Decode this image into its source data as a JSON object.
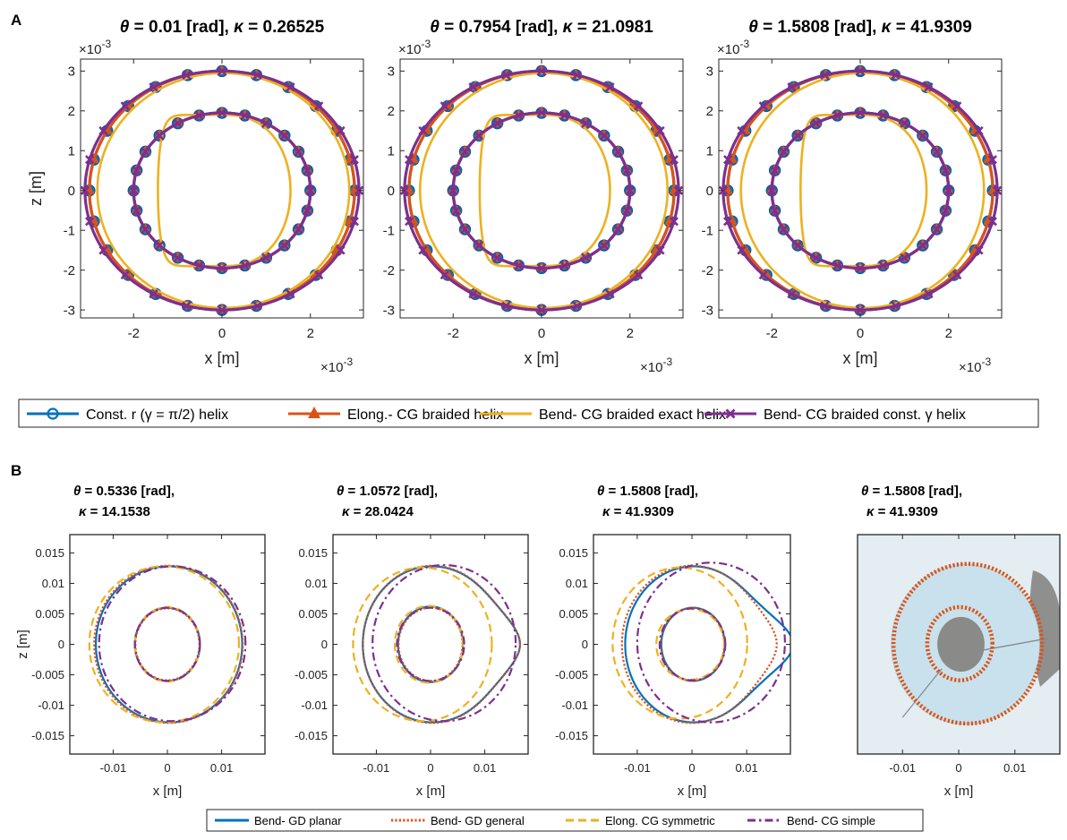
{
  "colors": {
    "blue": "#0072BD",
    "orange": "#D95319",
    "yellow": "#EDB120",
    "purple": "#7E2F8E",
    "photo_bg": "#e3edf2",
    "photo_disk": "#c9e1ec",
    "photo_hole": "#8a8a88"
  },
  "panel_labels": {
    "a": "A",
    "b": "B"
  },
  "legend_a": [
    {
      "label": "Const. r (γ = π/2) helix",
      "color": "#0072BD",
      "style": "solid",
      "marker": "circle"
    },
    {
      "label": "Elong.- CG braided helix",
      "color": "#D95319",
      "style": "solid",
      "marker": "triangle"
    },
    {
      "label": "Bend- CG braided exact helix",
      "color": "#EDB120",
      "style": "solid",
      "marker": "none"
    },
    {
      "label": "Bend- CG braided const. γ helix",
      "color": "#7E2F8E",
      "style": "solid",
      "marker": "x"
    }
  ],
  "legend_b": [
    {
      "label": "Bend- GD planar",
      "color": "#0072BD",
      "style": "solid"
    },
    {
      "label": "Bend- GD general",
      "color": "#D95319",
      "style": "dotted"
    },
    {
      "label": "Elong. CG symmetric",
      "color": "#EDB120",
      "style": "dashed"
    },
    {
      "label": "Bend- CG simple",
      "color": "#7E2F8E",
      "style": "dashdot"
    }
  ],
  "chart_data": [
    {
      "type": "line",
      "panel": "A",
      "title_sym1": "θ",
      "title_mid": " = 0.01 [rad], ",
      "title_sym2": "κ",
      "title_end": " = 0.26525",
      "xlabel": "x [m]",
      "ylabel": "z [m]",
      "x_exponent": "×10",
      "x_exponent_power": "-3",
      "y_exponent": "×10",
      "y_exponent_power": "-3",
      "xlim": [
        -3.2,
        3.2
      ],
      "ylim": [
        -3.2,
        3.3
      ],
      "xticks": [
        -2,
        0,
        2
      ],
      "xtick_labels": [
        "-2",
        "0",
        "2"
      ],
      "yticks": [
        -3,
        -2,
        -1,
        0,
        1,
        2,
        3
      ],
      "ytick_labels": [
        "-3",
        "-2",
        "-1",
        "0",
        "1",
        "2",
        "3"
      ],
      "series": [
        {
          "name": "Const. r inner",
          "curve": "ellipse",
          "a": 2.0,
          "b": 1.95,
          "cx": 0,
          "cz": 0,
          "color": "#0072BD",
          "marker": "circle"
        },
        {
          "name": "Const. r outer",
          "curve": "ellipse",
          "a": 3.0,
          "b": 3.0,
          "cx": 0,
          "cz": 0,
          "color": "#0072BD",
          "marker": "circle"
        },
        {
          "name": "Elong. inner",
          "curve": "ellipse",
          "a": 2.0,
          "b": 1.95,
          "cx": 0,
          "cz": 0,
          "color": "#D95319",
          "marker": "triangle"
        },
        {
          "name": "Elong. outer",
          "curve": "ellipse",
          "a": 3.0,
          "b": 3.0,
          "cx": 0,
          "cz": 0,
          "color": "#D95319",
          "marker": "triangle"
        },
        {
          "name": "Bend exact inner",
          "curve": "dshape",
          "xl": -1.45,
          "xr": 1.55,
          "hz": 1.9,
          "color": "#EDB120"
        },
        {
          "name": "Bend exact outer",
          "curve": "ellipse",
          "a": 2.85,
          "b": 2.95,
          "cx": 0.03,
          "cz": 0,
          "color": "#EDB120"
        },
        {
          "name": "Bend const inner",
          "curve": "ellipse",
          "a": 2.0,
          "b": 1.95,
          "cx": 0,
          "cz": 0,
          "color": "#7E2F8E",
          "marker": "x"
        },
        {
          "name": "Bend const outer",
          "curve": "ellipse",
          "a": 3.1,
          "b": 3.0,
          "cx": 0,
          "cz": 0,
          "color": "#7E2F8E",
          "marker": "x"
        }
      ]
    },
    {
      "type": "line",
      "panel": "A",
      "title_sym1": "θ",
      "title_mid": " = 0.7954 [rad], ",
      "title_sym2": "κ",
      "title_end": " = 21.0981",
      "xlabel": "x [m]",
      "ylabel": "",
      "x_exponent": "×10",
      "x_exponent_power": "-3",
      "y_exponent": "×10",
      "y_exponent_power": "-3",
      "xlim": [
        -3.2,
        3.2
      ],
      "ylim": [
        -3.2,
        3.3
      ],
      "xticks": [
        -2,
        0,
        2
      ],
      "xtick_labels": [
        "-2",
        "0",
        "2"
      ],
      "yticks": [
        -3,
        -2,
        -1,
        0,
        1,
        2,
        3
      ],
      "ytick_labels": [
        "-3",
        "-2",
        "-1",
        "0",
        "1",
        "2",
        "3"
      ],
      "series": [
        {
          "name": "Const. r inner",
          "curve": "ellipse",
          "a": 2.0,
          "b": 1.95,
          "cx": 0,
          "cz": 0,
          "color": "#0072BD",
          "marker": "circle"
        },
        {
          "name": "Const. r outer",
          "curve": "ellipse",
          "a": 3.0,
          "b": 3.0,
          "cx": 0,
          "cz": 0,
          "color": "#0072BD",
          "marker": "circle"
        },
        {
          "name": "Elong. inner",
          "curve": "ellipse",
          "a": 2.0,
          "b": 1.95,
          "cx": 0,
          "cz": 0,
          "color": "#D95319",
          "marker": "triangle"
        },
        {
          "name": "Elong. outer",
          "curve": "ellipse",
          "a": 3.0,
          "b": 3.0,
          "cx": 0,
          "cz": 0,
          "color": "#D95319",
          "marker": "triangle"
        },
        {
          "name": "Bend exact inner",
          "curve": "dshape",
          "xl": -1.4,
          "xr": 1.55,
          "hz": 1.9,
          "color": "#EDB120"
        },
        {
          "name": "Bend exact outer",
          "curve": "ellipse",
          "a": 2.8,
          "b": 2.95,
          "cx": 0.05,
          "cz": 0,
          "color": "#EDB120"
        },
        {
          "name": "Bend const inner",
          "curve": "ellipse",
          "a": 2.0,
          "b": 1.95,
          "cx": 0,
          "cz": 0,
          "color": "#7E2F8E",
          "marker": "x"
        },
        {
          "name": "Bend const outer",
          "curve": "ellipse",
          "a": 3.1,
          "b": 3.0,
          "cx": 0,
          "cz": 0,
          "color": "#7E2F8E",
          "marker": "x"
        }
      ]
    },
    {
      "type": "line",
      "panel": "A",
      "title_sym1": "θ",
      "title_mid": " = 1.5808 [rad], ",
      "title_sym2": "κ",
      "title_end": " = 41.9309",
      "xlabel": "x [m]",
      "ylabel": "",
      "x_exponent": "×10",
      "x_exponent_power": "-3",
      "y_exponent": "×10",
      "y_exponent_power": "-3",
      "xlim": [
        -3.2,
        3.2
      ],
      "ylim": [
        -3.2,
        3.3
      ],
      "xticks": [
        -2,
        0,
        2
      ],
      "xtick_labels": [
        "-2",
        "0",
        "2"
      ],
      "yticks": [
        -3,
        -2,
        -1,
        0,
        1,
        2,
        3
      ],
      "ytick_labels": [
        "-3",
        "-2",
        "-1",
        "0",
        "1",
        "2",
        "3"
      ],
      "series": [
        {
          "name": "Const. r inner",
          "curve": "ellipse",
          "a": 2.0,
          "b": 1.95,
          "cx": 0,
          "cz": 0,
          "color": "#0072BD",
          "marker": "circle"
        },
        {
          "name": "Const. r outer",
          "curve": "ellipse",
          "a": 3.0,
          "b": 3.0,
          "cx": 0,
          "cz": 0,
          "color": "#0072BD",
          "marker": "circle"
        },
        {
          "name": "Elong. inner",
          "curve": "ellipse",
          "a": 2.0,
          "b": 1.95,
          "cx": 0,
          "cz": 0,
          "color": "#D95319",
          "marker": "triangle"
        },
        {
          "name": "Elong. outer",
          "curve": "ellipse",
          "a": 3.0,
          "b": 3.0,
          "cx": 0,
          "cz": 0,
          "color": "#D95319",
          "marker": "triangle"
        },
        {
          "name": "Bend exact inner",
          "curve": "dshape",
          "xl": -1.35,
          "xr": 1.5,
          "hz": 1.9,
          "color": "#EDB120"
        },
        {
          "name": "Bend exact outer",
          "curve": "ellipse",
          "a": 2.75,
          "b": 2.95,
          "cx": 0.05,
          "cz": 0,
          "color": "#EDB120"
        },
        {
          "name": "Bend const inner",
          "curve": "ellipse",
          "a": 2.0,
          "b": 1.95,
          "cx": 0,
          "cz": 0,
          "color": "#7E2F8E",
          "marker": "x"
        },
        {
          "name": "Bend const outer",
          "curve": "ellipse",
          "a": 3.1,
          "b": 3.0,
          "cx": 0,
          "cz": 0,
          "color": "#7E2F8E",
          "marker": "x"
        }
      ]
    },
    {
      "type": "line",
      "panel": "B",
      "title_sym1": "θ",
      "title_mid": " = 0.5336 [rad],",
      "title_sym2": "κ",
      "title_end": " = 14.1538",
      "xlabel": "x [m]",
      "ylabel": "z [m]",
      "xlim": [
        -0.018,
        0.018
      ],
      "ylim": [
        -0.018,
        0.018
      ],
      "xticks": [
        -0.01,
        0,
        0.01
      ],
      "xtick_labels": [
        "-0.01",
        "0",
        "0.01"
      ],
      "yticks": [
        -0.015,
        -0.01,
        -0.005,
        0,
        0.005,
        0.01,
        0.015
      ],
      "ytick_labels": [
        "-0.015",
        "-0.01",
        "-0.005",
        "0",
        "0.005",
        "0.01",
        "0.015"
      ],
      "series": [
        {
          "name": "GD planar inner",
          "curve": "ellipse",
          "a": 0.006,
          "b": 0.006,
          "cx": 0,
          "cz": 0,
          "color": "#0072BD",
          "style": "solid"
        },
        {
          "name": "GD planar outer",
          "curve": "ellipse",
          "a": 0.0135,
          "b": 0.0128,
          "cx": 0.0003,
          "cz": 0,
          "color": "#0072BD",
          "style": "solid"
        },
        {
          "name": "GD general inner",
          "curve": "ellipse",
          "a": 0.0059,
          "b": 0.0059,
          "cx": 0,
          "cz": 0,
          "color": "#D95319",
          "style": "dotted"
        },
        {
          "name": "GD general outer",
          "curve": "ellipse",
          "a": 0.0137,
          "b": 0.0129,
          "cx": 0.0002,
          "cz": 0,
          "color": "#D95319",
          "style": "dotted"
        },
        {
          "name": "Elong inner",
          "curve": "ellipse",
          "a": 0.006,
          "b": 0.0061,
          "cx": 0,
          "cz": 0,
          "color": "#EDB120",
          "style": "dashed"
        },
        {
          "name": "Elong outer",
          "curve": "ellipse",
          "a": 0.0138,
          "b": 0.0128,
          "cx": -0.0006,
          "cz": 0,
          "color": "#EDB120",
          "style": "dashed"
        },
        {
          "name": "CG simple inner",
          "curve": "ellipse",
          "a": 0.006,
          "b": 0.006,
          "cx": 0,
          "cz": 0,
          "color": "#7E2F8E",
          "style": "dashdot"
        },
        {
          "name": "CG simple outer",
          "curve": "ellipse",
          "a": 0.0135,
          "b": 0.0127,
          "cx": 0.0009,
          "cz": 0.0001,
          "color": "#7E2F8E",
          "style": "dashdot"
        }
      ]
    },
    {
      "type": "line",
      "panel": "B",
      "title_sym1": "θ",
      "title_mid": " = 1.0572 [rad],",
      "title_sym2": "κ",
      "title_end": " = 28.0424",
      "xlabel": "x [m]",
      "ylabel": "",
      "xlim": [
        -0.018,
        0.018
      ],
      "ylim": [
        -0.018,
        0.018
      ],
      "xticks": [
        -0.01,
        0,
        0.01
      ],
      "xtick_labels": [
        "-0.01",
        "0",
        "0.01"
      ],
      "yticks": [
        -0.015,
        -0.01,
        -0.005,
        0,
        0.005,
        0.01,
        0.015
      ],
      "ytick_labels": [
        "-0.015",
        "-0.01",
        "-0.005",
        "0",
        "0.005",
        "0.01",
        "0.015"
      ],
      "series": [
        {
          "name": "GD planar inner",
          "curve": "ellipse",
          "a": 0.006,
          "b": 0.0062,
          "cx": 0,
          "cz": 0,
          "color": "#0072BD",
          "style": "solid"
        },
        {
          "name": "GD planar outer",
          "curve": "bulge",
          "a": 0.0128,
          "b": 0.0128,
          "cx": 0.0003,
          "cz": 0,
          "tip": 0.0165,
          "color": "#0072BD",
          "style": "solid"
        },
        {
          "name": "GD general inner",
          "curve": "ellipse",
          "a": 0.0059,
          "b": 0.006,
          "cx": 0,
          "cz": 0,
          "color": "#D95319",
          "style": "dotted"
        },
        {
          "name": "GD general outer",
          "curve": "bulge",
          "a": 0.0128,
          "b": 0.0129,
          "cx": 0.0003,
          "cz": 0,
          "tip": 0.0165,
          "color": "#D95319",
          "style": "dotted"
        },
        {
          "name": "Elong inner",
          "curve": "ellipse",
          "a": 0.0063,
          "b": 0.0063,
          "cx": -0.0003,
          "cz": 0,
          "color": "#EDB120",
          "style": "dashed"
        },
        {
          "name": "Elong outer",
          "curve": "ellipse",
          "a": 0.0128,
          "b": 0.0126,
          "cx": -0.0015,
          "cz": 0,
          "color": "#EDB120",
          "style": "dashed"
        },
        {
          "name": "CG simple inner",
          "curve": "ellipse",
          "a": 0.0062,
          "b": 0.006,
          "cx": 0,
          "cz": 0,
          "color": "#7E2F8E",
          "style": "dashdot"
        },
        {
          "name": "CG simple outer",
          "curve": "ellipse",
          "a": 0.0132,
          "b": 0.0128,
          "cx": 0.0025,
          "cz": 0.0002,
          "color": "#7E2F8E",
          "style": "dashdot"
        }
      ]
    },
    {
      "type": "line",
      "panel": "B",
      "title_sym1": "θ",
      "title_mid": " = 1.5808 [rad],",
      "title_sym2": "κ",
      "title_end": " = 41.9309",
      "xlabel": "x [m]",
      "ylabel": "",
      "xlim": [
        -0.018,
        0.018
      ],
      "ylim": [
        -0.018,
        0.018
      ],
      "xticks": [
        -0.01,
        0,
        0.01
      ],
      "xtick_labels": [
        "-0.01",
        "0",
        "0.01"
      ],
      "yticks": [
        -0.015,
        -0.01,
        -0.005,
        0,
        0.005,
        0.01,
        0.015
      ],
      "ytick_labels": [
        "-0.015",
        "-0.01",
        "-0.005",
        "0",
        "0.005",
        "0.01",
        "0.015"
      ],
      "series": [
        {
          "name": "GD planar inner",
          "curve": "ellipse",
          "a": 0.0058,
          "b": 0.006,
          "cx": 0.0002,
          "cz": 0,
          "color": "#0072BD",
          "style": "solid"
        },
        {
          "name": "GD planar outer",
          "curve": "bulge",
          "a": 0.0125,
          "b": 0.0128,
          "cx": 0.0003,
          "cz": 0,
          "tip": 0.0185,
          "color": "#0072BD",
          "style": "solid"
        },
        {
          "name": "GD general inner",
          "curve": "ellipse",
          "a": 0.0058,
          "b": 0.006,
          "cx": 0.0001,
          "cz": 0,
          "color": "#D95319",
          "style": "dotted"
        },
        {
          "name": "GD general outer",
          "curve": "bulge",
          "a": 0.0128,
          "b": 0.0129,
          "cx": 0.0,
          "cz": 0,
          "tip": 0.0155,
          "color": "#D95319",
          "style": "dotted"
        },
        {
          "name": "Elong inner",
          "curve": "ellipse",
          "a": 0.0062,
          "b": 0.0058,
          "cx": -0.0003,
          "cz": 0,
          "color": "#EDB120",
          "style": "dashed"
        },
        {
          "name": "Elong outer",
          "curve": "ellipse",
          "a": 0.0123,
          "b": 0.0124,
          "cx": -0.0022,
          "cz": 0.0002,
          "color": "#EDB120",
          "style": "dashed"
        },
        {
          "name": "CG simple inner",
          "curve": "ellipse",
          "a": 0.006,
          "b": 0.0059,
          "cx": 0.0001,
          "cz": 0,
          "color": "#7E2F8E",
          "style": "dashdot"
        },
        {
          "name": "CG simple outer",
          "curve": "ellipse",
          "a": 0.0135,
          "b": 0.0131,
          "cx": 0.0035,
          "cz": 0.0003,
          "color": "#7E2F8E",
          "style": "dashdot"
        }
      ]
    },
    {
      "type": "line",
      "panel": "B",
      "photo": true,
      "title_sym1": "θ",
      "title_mid": " = 1.5808 [rad],",
      "title_sym2": "κ",
      "title_end": " = 41.9309",
      "xlabel": "x [m]",
      "ylabel": "",
      "xlim": [
        -0.018,
        0.018
      ],
      "ylim": [
        -0.018,
        0.018
      ],
      "xticks": [
        -0.01,
        0,
        0.01
      ],
      "xtick_labels": [
        "-0.01",
        "0",
        "0.01"
      ],
      "yticks": [],
      "ytick_labels": [],
      "series": [
        {
          "name": "overlay inner",
          "curve": "ellipse",
          "a": 0.0058,
          "b": 0.006,
          "cx": 0.0002,
          "cz": 0.0001,
          "color": "#D95319",
          "style": "dotted"
        },
        {
          "name": "overlay outer",
          "curve": "ellipse",
          "a": 0.0132,
          "b": 0.0131,
          "cx": 0.0016,
          "cz": 0.0001,
          "color": "#D95319",
          "style": "dotted"
        }
      ]
    }
  ]
}
